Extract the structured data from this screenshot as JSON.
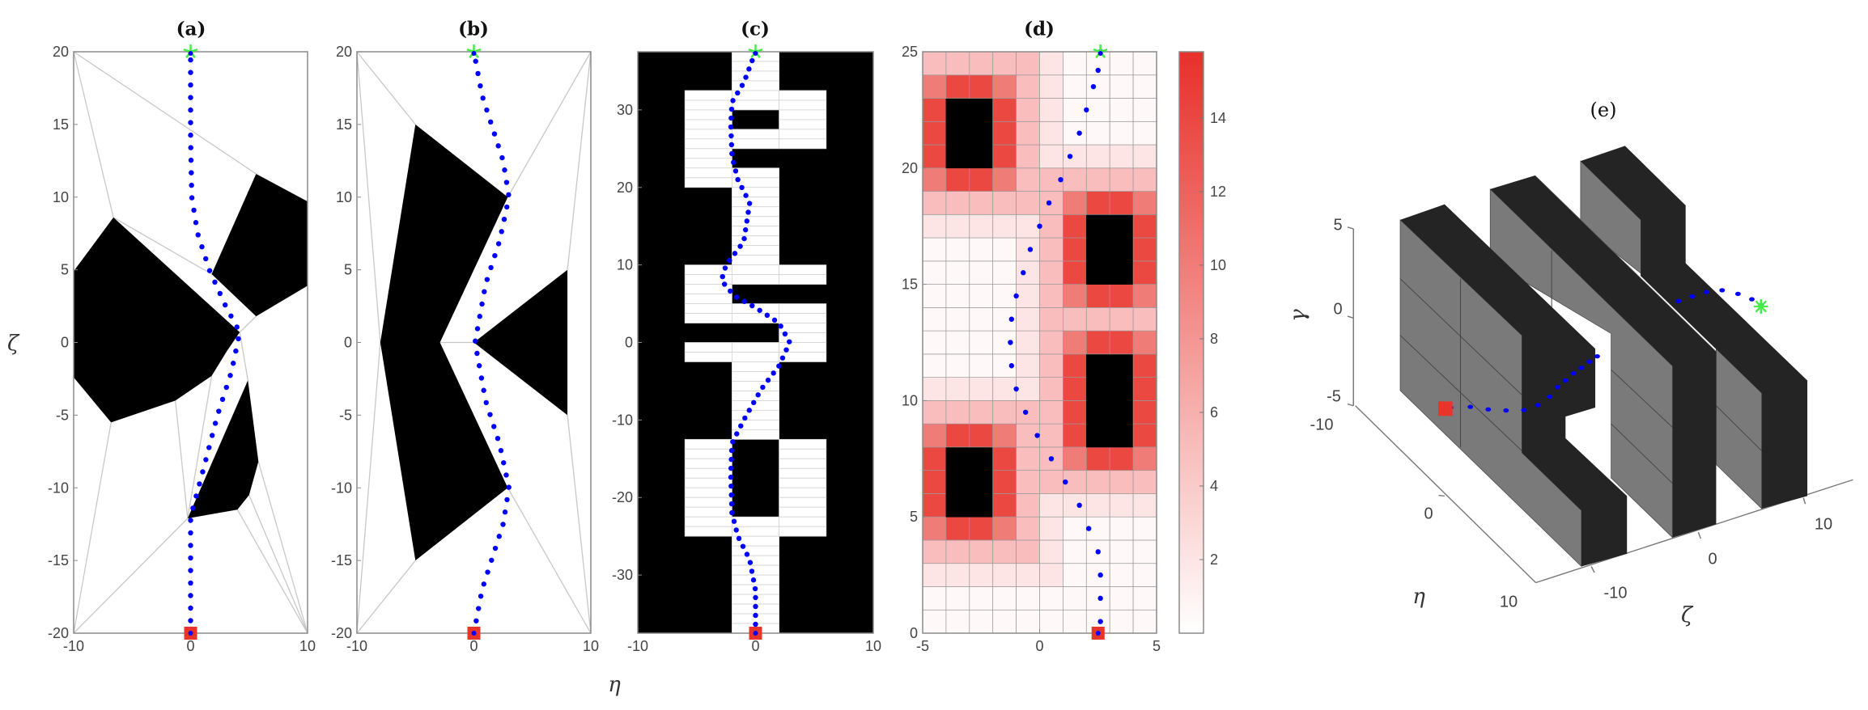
{
  "figure": {
    "y_axis_label": "ζ",
    "x_axis_label": "η"
  },
  "colors": {
    "path": "#0000ff",
    "start": "#e8352a",
    "goal": "#44ee44",
    "obstacle": "#000000",
    "heat_max": "#e8302a",
    "wall_face": "#7a7a7a",
    "wall_top": "#242424"
  },
  "chart_data": [
    {
      "type": "scatter",
      "title": "(a)",
      "xlim": [
        -10,
        10
      ],
      "ylim": [
        -20,
        20
      ],
      "xticks": [
        -10,
        0,
        10
      ],
      "yticks": [
        -20,
        -15,
        -10,
        -5,
        0,
        5,
        10,
        15,
        20
      ],
      "obstacles": [
        [
          [
            -10,
            4.9
          ],
          [
            -6.6,
            8.6
          ],
          [
            4.2,
            0.7
          ],
          [
            3.1,
            -0.6
          ],
          [
            1.8,
            -2.3
          ],
          [
            -1.3,
            -4
          ],
          [
            -6.8,
            -5.5
          ],
          [
            -10,
            -2.4
          ]
        ],
        [
          [
            1.8,
            4.7
          ],
          [
            5.6,
            11.6
          ],
          [
            10,
            9.7
          ],
          [
            10,
            3.9
          ],
          [
            5.6,
            1.8
          ]
        ],
        [
          [
            -0.25,
            -12.1
          ],
          [
            4.9,
            -2.6
          ],
          [
            5.8,
            -8.2
          ],
          [
            5,
            -10.5
          ],
          [
            4,
            -11.5
          ]
        ]
      ],
      "roadmap_edges": [
        [
          [
            -10,
            20
          ],
          [
            -6.6,
            8.6
          ]
        ],
        [
          [
            -10,
            20
          ],
          [
            5.6,
            11.6
          ]
        ],
        [
          [
            -6.6,
            8.6
          ],
          [
            1.8,
            4.7
          ]
        ],
        [
          [
            4.2,
            0.7
          ],
          [
            5.6,
            1.8
          ]
        ],
        [
          [
            4.2,
            0.7
          ],
          [
            4.9,
            -2.6
          ]
        ],
        [
          [
            1.8,
            -2.3
          ],
          [
            -0.25,
            -12.1
          ]
        ],
        [
          [
            -1.3,
            -4
          ],
          [
            -0.25,
            -12.1
          ]
        ],
        [
          [
            -6.8,
            -5.5
          ],
          [
            -10,
            -20
          ]
        ],
        [
          [
            -0.25,
            -12.1
          ],
          [
            -10,
            -20
          ]
        ],
        [
          [
            4,
            -11.5
          ],
          [
            10,
            -20
          ]
        ],
        [
          [
            5,
            -10.5
          ],
          [
            10,
            -20
          ]
        ],
        [
          [
            5.8,
            -8.2
          ],
          [
            10,
            -20
          ]
        ]
      ],
      "path": [
        [
          0,
          -20
        ],
        [
          0,
          -12
        ],
        [
          1,
          -9
        ],
        [
          2.3,
          -5
        ],
        [
          3.5,
          -2
        ],
        [
          4.2,
          0.7
        ],
        [
          3,
          2.5
        ],
        [
          1.6,
          5
        ],
        [
          0.6,
          7.5
        ],
        [
          0.1,
          10
        ],
        [
          0,
          14
        ],
        [
          0,
          20
        ]
      ],
      "start": [
        0,
        -20
      ],
      "goal": [
        0,
        20
      ]
    },
    {
      "type": "scatter",
      "title": "(b)",
      "xlim": [
        -10,
        10
      ],
      "ylim": [
        -20,
        20
      ],
      "xticks": [
        -10,
        0,
        10
      ],
      "yticks": [
        -20,
        -15,
        -10,
        -5,
        0,
        5,
        10,
        15,
        20
      ],
      "obstacles": [
        [
          [
            -5,
            15
          ],
          [
            2.9,
            10
          ],
          [
            -2.9,
            0
          ],
          [
            2.9,
            -10
          ],
          [
            -5,
            -15
          ],
          [
            -8,
            0
          ]
        ],
        [
          [
            0,
            0
          ],
          [
            8,
            5
          ],
          [
            8,
            -5
          ]
        ]
      ],
      "roadmap_edges": [
        [
          [
            -10,
            20
          ],
          [
            -5,
            15
          ]
        ],
        [
          [
            -10,
            20
          ],
          [
            -8,
            0
          ]
        ],
        [
          [
            -10,
            -20
          ],
          [
            -8,
            0
          ]
        ],
        [
          [
            -10,
            -20
          ],
          [
            -5,
            -15
          ]
        ],
        [
          [
            10,
            20
          ],
          [
            2.9,
            10
          ]
        ],
        [
          [
            10,
            20
          ],
          [
            8,
            5
          ]
        ],
        [
          [
            10,
            -20
          ],
          [
            2.9,
            -10
          ]
        ],
        [
          [
            10,
            -20
          ],
          [
            8,
            -5
          ]
        ],
        [
          [
            -2.9,
            0
          ],
          [
            0,
            0
          ]
        ]
      ],
      "path": [
        [
          0,
          -20
        ],
        [
          0.7,
          -17
        ],
        [
          1.5,
          -15
        ],
        [
          2.5,
          -12.5
        ],
        [
          3,
          -10
        ],
        [
          2.2,
          -7
        ],
        [
          1,
          -4
        ],
        [
          0.1,
          0
        ],
        [
          1,
          4
        ],
        [
          2.2,
          7
        ],
        [
          3,
          10
        ],
        [
          2.5,
          12.5
        ],
        [
          1.5,
          15
        ],
        [
          0.7,
          17
        ],
        [
          0,
          20
        ]
      ],
      "start": [
        0,
        -20
      ],
      "goal": [
        0,
        20
      ]
    },
    {
      "type": "heatmap",
      "title": "(c)",
      "xlim": [
        -10,
        10
      ],
      "ylim": [
        -37.5,
        37.5
      ],
      "xticks": [
        -10,
        0,
        10
      ],
      "yticks": [
        -30,
        -20,
        -10,
        0,
        10,
        20,
        30
      ],
      "column_bands": [
        [
          -10,
          -6
        ],
        [
          -6,
          -2
        ],
        [
          -2,
          2
        ],
        [
          2,
          6
        ],
        [
          6,
          10
        ]
      ],
      "row_height": 2.5,
      "free_map_rows_top_to_bottom": [
        "00100",
        "00100",
        "01110",
        "01010",
        "01110",
        "01000",
        "01100",
        "00100",
        "00100",
        "00100",
        "00100",
        "01110",
        "01000",
        "01110",
        "00010",
        "01110",
        "00100",
        "00100",
        "00100",
        "00100",
        "01010",
        "01010",
        "01010",
        "01010",
        "01110",
        "00100",
        "00100",
        "00100",
        "00100",
        "00100"
      ],
      "path": [
        [
          0,
          -37.5
        ],
        [
          0,
          -32
        ],
        [
          -0.5,
          -28
        ],
        [
          -1.5,
          -25
        ],
        [
          -2,
          -22
        ],
        [
          -2.1,
          -17
        ],
        [
          -2,
          -13
        ],
        [
          -1,
          -10
        ],
        [
          0.5,
          -6
        ],
        [
          2,
          -3
        ],
        [
          2.9,
          0
        ],
        [
          2,
          2.5
        ],
        [
          0,
          4.5
        ],
        [
          -1.8,
          6
        ],
        [
          -2.9,
          8
        ],
        [
          -2.5,
          10
        ],
        [
          -1,
          13
        ],
        [
          -0.7,
          16
        ],
        [
          -0.5,
          18
        ],
        [
          -1.5,
          21
        ],
        [
          -2,
          24
        ],
        [
          -2.1,
          28
        ],
        [
          -2,
          31
        ],
        [
          -1,
          33.5
        ],
        [
          0,
          37.5
        ]
      ],
      "start": [
        0,
        -37.5
      ],
      "goal": [
        0,
        37.5
      ]
    },
    {
      "type": "heatmap",
      "title": "(d)",
      "xlim": [
        -5,
        5
      ],
      "ylim": [
        0,
        25
      ],
      "xticks": [
        -5,
        0,
        5
      ],
      "yticks": [
        0,
        5,
        10,
        15,
        20,
        25
      ],
      "cell_x_edges_start": -5,
      "cell_size": 1,
      "values_rows_bottom_to_top": [
        [
          0.5,
          0.5,
          0.5,
          0.5,
          0.5,
          0.5,
          0.5,
          0.5,
          0.5,
          0.5
        ],
        [
          0.5,
          0.5,
          0.5,
          0.5,
          0.5,
          0.5,
          0.5,
          0.5,
          0.5,
          0.5
        ],
        [
          2,
          2,
          2,
          2,
          2,
          2,
          0.5,
          0.5,
          0.5,
          0.5
        ],
        [
          5,
          5,
          5,
          5,
          5,
          2,
          0.5,
          0.5,
          0.5,
          0.5
        ],
        [
          10,
          14,
          14,
          10,
          5,
          2,
          0.5,
          0.5,
          0.5,
          0.5
        ],
        [
          14,
          null,
          null,
          14,
          5,
          2,
          2,
          2,
          2,
          2
        ],
        [
          14,
          null,
          null,
          14,
          5,
          5,
          5,
          5,
          5,
          5
        ],
        [
          14,
          null,
          null,
          14,
          5,
          5,
          10,
          14,
          14,
          10
        ],
        [
          10,
          14,
          14,
          10,
          5,
          5,
          14,
          null,
          null,
          14
        ],
        [
          5,
          5,
          5,
          5,
          5,
          5,
          14,
          null,
          null,
          14
        ],
        [
          2,
          2,
          2,
          2,
          2,
          5,
          14,
          null,
          null,
          14
        ],
        [
          0.5,
          0.5,
          0.5,
          0.5,
          2,
          5,
          14,
          null,
          null,
          14
        ],
        [
          0.5,
          0.5,
          0.5,
          0.5,
          2,
          5,
          10,
          14,
          14,
          10
        ],
        [
          0.5,
          0.5,
          0.5,
          0.5,
          2,
          5,
          5,
          5,
          5,
          5
        ],
        [
          0.5,
          0.5,
          0.5,
          0.5,
          2,
          5,
          10,
          14,
          14,
          10
        ],
        [
          0.5,
          0.5,
          0.5,
          0.5,
          2,
          5,
          14,
          null,
          null,
          14
        ],
        [
          0.5,
          0.5,
          0.5,
          0.5,
          2,
          5,
          14,
          null,
          null,
          14
        ],
        [
          2,
          2,
          2,
          2,
          2,
          5,
          14,
          null,
          null,
          14
        ],
        [
          5,
          5,
          5,
          5,
          5,
          5,
          10,
          14,
          14,
          10
        ],
        [
          10,
          14,
          14,
          10,
          5,
          5,
          5,
          5,
          5,
          5
        ],
        [
          14,
          null,
          null,
          14,
          5,
          2,
          2,
          2,
          2,
          2
        ],
        [
          14,
          null,
          null,
          14,
          5,
          2,
          0.5,
          0.5,
          0.5,
          0.5
        ],
        [
          14,
          null,
          null,
          14,
          5,
          2,
          0.5,
          0.5,
          0.5,
          0.5
        ],
        [
          10,
          14,
          14,
          10,
          5,
          2,
          0.5,
          0.5,
          0.5,
          0.5
        ],
        [
          5,
          5,
          5,
          5,
          5,
          2,
          0.5,
          0.5,
          0.5,
          0.5
        ]
      ],
      "colorbar": {
        "range": [
          0,
          15.8
        ],
        "ticks": [
          2,
          4,
          6,
          8,
          10,
          12,
          14
        ]
      },
      "path_points": [
        [
          2.5,
          0
        ],
        [
          2.6,
          0.5
        ],
        [
          2.6,
          1.5
        ],
        [
          2.6,
          2.5
        ],
        [
          2.5,
          3.5
        ],
        [
          2.1,
          4.5
        ],
        [
          1.7,
          5.5
        ],
        [
          1.1,
          6.5
        ],
        [
          0.5,
          7.5
        ],
        [
          -0.1,
          8.5
        ],
        [
          -0.6,
          9.5
        ],
        [
          -1,
          10.5
        ],
        [
          -1.2,
          11.5
        ],
        [
          -1.25,
          12.5
        ],
        [
          -1.2,
          13.5
        ],
        [
          -1,
          14.5
        ],
        [
          -0.7,
          15.5
        ],
        [
          -0.4,
          16.5
        ],
        [
          0,
          17.5
        ],
        [
          0.4,
          18.5
        ],
        [
          0.9,
          19.5
        ],
        [
          1.3,
          20.5
        ],
        [
          1.7,
          21.5
        ],
        [
          2,
          22.5
        ],
        [
          2.3,
          23.5
        ],
        [
          2.5,
          24.2
        ],
        [
          2.6,
          25
        ]
      ],
      "start": [
        2.5,
        0
      ],
      "goal": [
        2.6,
        25
      ]
    },
    {
      "type": "scatter",
      "title": "(e)",
      "zlabel": "γ",
      "xlabel": "η",
      "ylabel": "ζ",
      "gamma_ticks": [
        "5",
        "0",
        "-5"
      ],
      "eta_ticks": [
        "-10",
        "0",
        "10"
      ],
      "zeta_ticks": [
        "-10",
        "0",
        "10"
      ]
    }
  ]
}
